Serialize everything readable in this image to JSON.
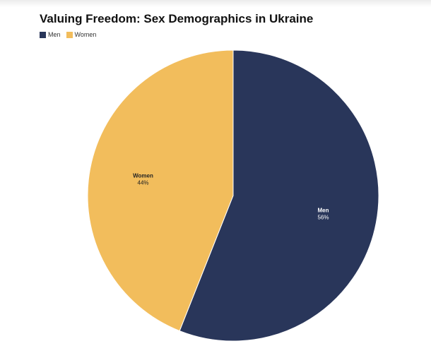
{
  "chart_data": {
    "type": "pie",
    "title": "Valuing Freedom: Sex Demographics in Ukraine",
    "legend_position": "top-left",
    "slices": [
      {
        "label": "Men",
        "value": 56,
        "value_label": "56%",
        "color": "#29365a",
        "text_color": "#ffffff"
      },
      {
        "label": "Women",
        "value": 44,
        "value_label": "44%",
        "color": "#f2bd5c",
        "text_color": "#222222"
      }
    ]
  }
}
